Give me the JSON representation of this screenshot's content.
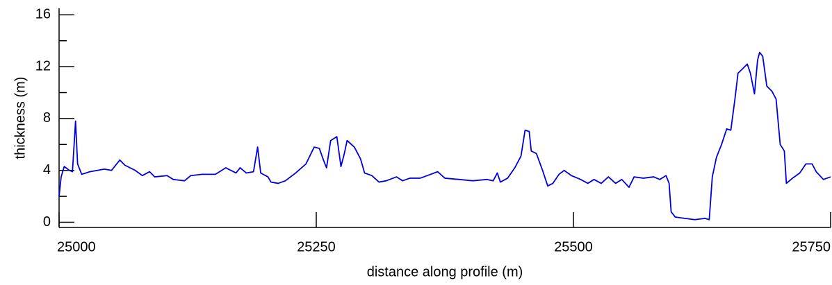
{
  "chart_data": {
    "type": "line",
    "xlabel": "distance along profile (m)",
    "ylabel": "thickness (m)",
    "xlim": [
      25000,
      25750
    ],
    "xticks": [
      25000,
      25250,
      25500,
      25750
    ],
    "ylim": [
      -0.4,
      16.5
    ],
    "yticks": [
      0,
      4,
      8,
      12,
      16
    ],
    "yminorticks": [
      2,
      6,
      10,
      14
    ],
    "grid": false,
    "series": [
      {
        "color": "#0000dd",
        "x": [
          25000,
          25002,
          25005,
          25010,
          25013,
          25016,
          25018,
          25022,
          25030,
          25044,
          25051,
          25059,
          25064,
          25074,
          25081,
          25088,
          25093,
          25105,
          25111,
          25122,
          25128,
          25139,
          25152,
          25162,
          25172,
          25176,
          25182,
          25189,
          25193,
          25196,
          25203,
          25206,
          25213,
          25220,
          25230,
          25240,
          25248,
          25253,
          25257,
          25260,
          25264,
          25270,
          25274,
          25277,
          25280,
          25287,
          25293,
          25297,
          25304,
          25311,
          25318,
          25328,
          25334,
          25341,
          25351,
          25358,
          25368,
          25375,
          25389,
          25402,
          25416,
          25422,
          25426,
          25429,
          25436,
          25443,
          25449,
          25453,
          25457,
          25459,
          25464,
          25470,
          25475,
          25480,
          25486,
          25491,
          25498,
          25507,
          25514,
          25520,
          25527,
          25534,
          25541,
          25547,
          25554,
          25559,
          25568,
          25578,
          25584,
          25590,
          25593,
          25595,
          25599,
          25608,
          25618,
          25628,
          25632,
          25635,
          25639,
          25644,
          25649,
          25653,
          25657,
          25660,
          25664,
          25669,
          25672,
          25676,
          25679,
          25681,
          25684,
          25688,
          25693,
          25697,
          25701,
          25705,
          25707,
          25713,
          25720,
          25726,
          25732,
          25736,
          25743,
          25750
        ],
        "values": [
          2,
          3.5,
          4.3,
          4.0,
          3.9,
          7.8,
          4.5,
          3.7,
          3.9,
          4.1,
          4.0,
          4.8,
          4.4,
          4.0,
          3.6,
          3.9,
          3.5,
          3.6,
          3.3,
          3.2,
          3.6,
          3.7,
          3.7,
          4.2,
          3.8,
          4.2,
          3.8,
          3.9,
          5.8,
          3.8,
          3.5,
          3.1,
          3.0,
          3.2,
          3.8,
          4.5,
          5.8,
          5.7,
          4.8,
          4.2,
          6.3,
          6.6,
          4.3,
          5.2,
          6.3,
          5.8,
          4.9,
          3.8,
          3.6,
          3.1,
          3.2,
          3.5,
          3.2,
          3.4,
          3.4,
          3.6,
          3.9,
          3.4,
          3.3,
          3.2,
          3.3,
          3.2,
          3.8,
          3.1,
          3.4,
          4.2,
          5.1,
          7.1,
          7.0,
          5.5,
          5.3,
          4.0,
          2.8,
          3.0,
          3.7,
          4.0,
          3.6,
          3.3,
          3.0,
          3.3,
          3.0,
          3.5,
          3.0,
          3.3,
          2.7,
          3.5,
          3.4,
          3.5,
          3.3,
          3.6,
          3.0,
          0.8,
          0.4,
          0.3,
          0.2,
          0.3,
          0.2,
          3.5,
          5,
          6,
          7.2,
          7.1,
          9.5,
          11.5,
          11.8,
          12.2,
          11.5,
          9.9,
          12.5,
          13.1,
          12.8,
          10.5,
          10.1,
          9.5,
          6.0,
          5.5,
          3.0,
          3.4,
          3.8,
          4.5,
          4.5,
          3.9,
          3.3,
          3.5
        ]
      }
    ]
  }
}
